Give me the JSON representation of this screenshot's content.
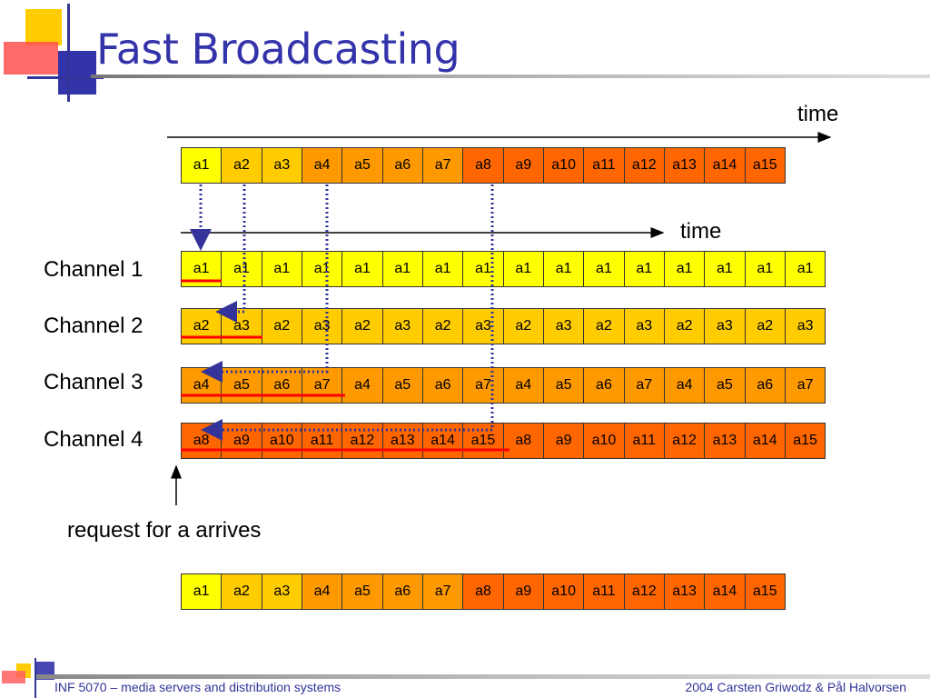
{
  "slide": {
    "title": "Fast Broadcasting"
  },
  "labels": {
    "time": "time",
    "request": "request for a arrives"
  },
  "segments": [
    "a1",
    "a2",
    "a3",
    "a4",
    "a5",
    "a6",
    "a7",
    "a8",
    "a9",
    "a10",
    "a11",
    "a12",
    "a13",
    "a14",
    "a15"
  ],
  "channels": [
    {
      "name": "Channel 1",
      "cycle": [
        "a1"
      ]
    },
    {
      "name": "Channel 2",
      "cycle": [
        "a2",
        "a3"
      ]
    },
    {
      "name": "Channel 3",
      "cycle": [
        "a4",
        "a5",
        "a6",
        "a7"
      ]
    },
    {
      "name": "Channel 4",
      "cycle": [
        "a8",
        "a9",
        "a10",
        "a11",
        "a12",
        "a13",
        "a14",
        "a15"
      ]
    }
  ],
  "colors": {
    "ch1": "#ffff00",
    "ch2": "#ffcc00",
    "ch3": "#ff9900",
    "ch4": "#ff6600",
    "title": "#3333aa",
    "dotted": "#333399",
    "underline": "#ff0000"
  },
  "footer": {
    "left": "INF 5070 – media servers and distribution systems",
    "right": "2004  Carsten Griwodz & Pål Halvorsen"
  }
}
